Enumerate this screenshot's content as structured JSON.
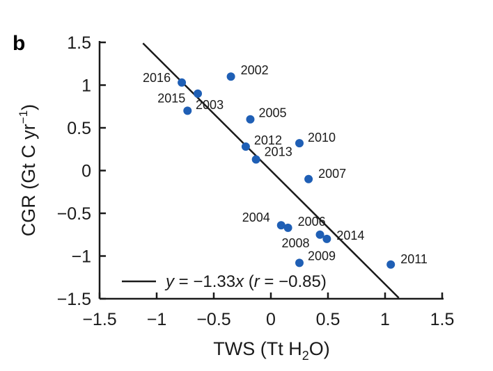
{
  "panel_letter": "b",
  "colors": {
    "point": "#1f5fb5",
    "line": "#1a1a1a",
    "axis": "#1a1a1a"
  },
  "chart_data": {
    "type": "scatter",
    "xlabel_main": "TWS (Tt H",
    "xlabel_sub": "2",
    "xlabel_end": "O)",
    "ylabel_main": "CGR (Gt C yr",
    "ylabel_sup": "−1",
    "ylabel_end": ")",
    "xlim": [
      -1.5,
      1.5
    ],
    "ylim": [
      -1.5,
      1.5
    ],
    "xticks": [
      -1.5,
      -1,
      -0.5,
      0,
      0.5,
      1,
      1.5
    ],
    "xtick_labels": [
      "−1.5",
      "−1",
      "−0.5",
      "0",
      "0.5",
      "1",
      "1.5"
    ],
    "yticks": [
      -1.5,
      -1,
      -0.5,
      0,
      0.5,
      1,
      1.5
    ],
    "ytick_labels": [
      "−1.5",
      "−1",
      "−0.5",
      "0",
      "0.5",
      "1",
      "1.5"
    ],
    "grid": false,
    "points": [
      {
        "label": "2002",
        "x": -0.35,
        "y": 1.1
      },
      {
        "label": "2016",
        "x": -0.78,
        "y": 1.03
      },
      {
        "label": "2003",
        "x": -0.64,
        "y": 0.9
      },
      {
        "label": "2015",
        "x": -0.73,
        "y": 0.7
      },
      {
        "label": "2005",
        "x": -0.18,
        "y": 0.6
      },
      {
        "label": "2010",
        "x": 0.25,
        "y": 0.32
      },
      {
        "label": "2012",
        "x": -0.22,
        "y": 0.28
      },
      {
        "label": "2013",
        "x": -0.13,
        "y": 0.13
      },
      {
        "label": "2007",
        "x": 0.33,
        "y": -0.1
      },
      {
        "label": "2004",
        "x": 0.09,
        "y": -0.64
      },
      {
        "label": "2006",
        "x": 0.15,
        "y": -0.67
      },
      {
        "label": "2008",
        "x": 0.43,
        "y": -0.75
      },
      {
        "label": "2014",
        "x": 0.49,
        "y": -0.8
      },
      {
        "label": "2009",
        "x": 0.25,
        "y": -1.08
      },
      {
        "label": "2011",
        "x": 1.05,
        "y": -1.1
      }
    ],
    "fit_line": {
      "slope": -1.33,
      "intercept": 0.0,
      "x_start": -1.12,
      "x_end": 1.12
    },
    "legend": {
      "position": "bottom-left",
      "eq_y": "y",
      "eq_mid": " = −1.33",
      "eq_x": "x",
      "eq_open": " (",
      "eq_r": "r",
      "eq_close": " = −0.85)"
    }
  }
}
